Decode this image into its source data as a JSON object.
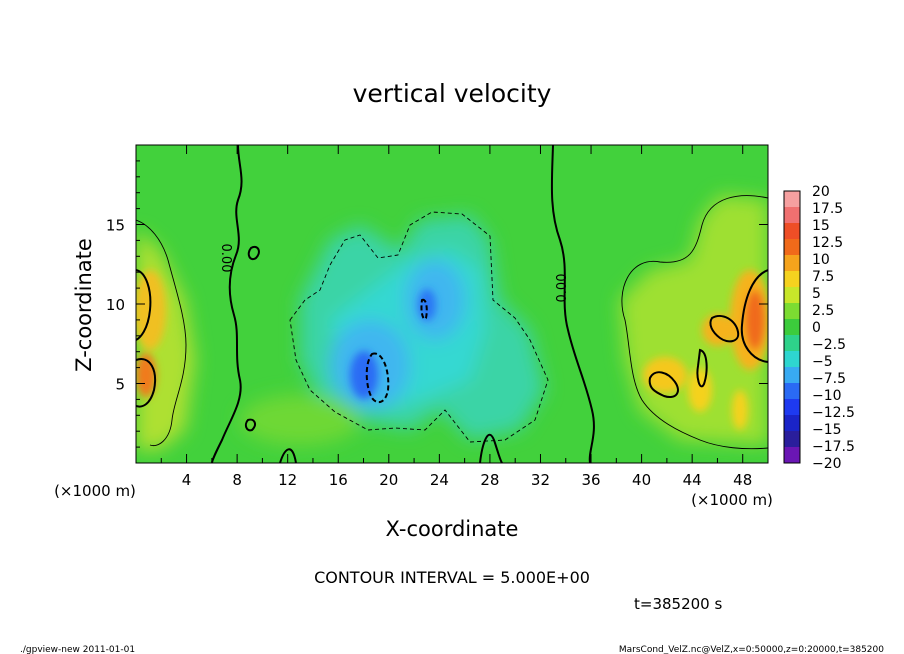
{
  "chart_data": {
    "type": "heatmap",
    "title": "vertical velocity",
    "xlabel": "X-coordinate",
    "ylabel": "Z-coordinate",
    "x_unit": "(×1000 m)",
    "y_unit": "(×1000 m)",
    "xlim": [
      0,
      50
    ],
    "ylim": [
      0,
      20
    ],
    "x_ticks": [
      "4",
      "8",
      "12",
      "16",
      "20",
      "24",
      "28",
      "32",
      "36",
      "40",
      "44",
      "48"
    ],
    "y_ticks": [
      "5",
      "10",
      "15"
    ],
    "colorbar_labels": [
      "20",
      "17.5",
      "15",
      "12.5",
      "10",
      "7.5",
      "5",
      "2.5",
      "0",
      "−2.5",
      "−5",
      "−7.5",
      "−10",
      "−12.5",
      "−15",
      "−17.5",
      "−20"
    ],
    "colorbar_colors": [
      "#f6a0a0",
      "#f07070",
      "#ee4e26",
      "#f06a1a",
      "#f5a31c",
      "#f5d21f",
      "#c8e62a",
      "#7cdc32",
      "#3ccc3c",
      "#2ed28a",
      "#2ed6d0",
      "#38aaf2",
      "#2a6af4",
      "#1e3af0",
      "#1a24c8",
      "#2a1e9c",
      "#6a16b4"
    ],
    "contour_label_a": "0.00",
    "contour_label_b": "0.00",
    "footer": {
      "interval": "CONTOUR INTERVAL = 5.000E+00",
      "time": "t=385200 s",
      "program": "./gpview-new  2011-01-01",
      "source": "MarsCond_VelZ.nc@VelZ,x=0:50000,z=0:20000,t=385200"
    }
  }
}
